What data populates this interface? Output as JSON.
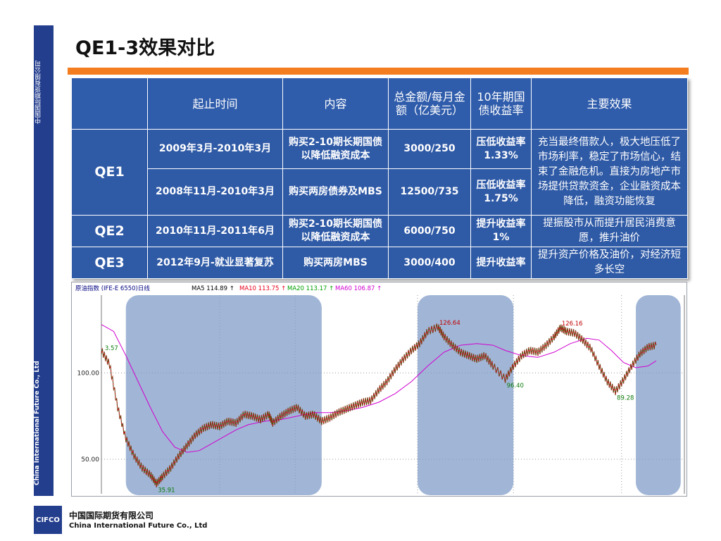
{
  "sidebar": {
    "company_cn": "中国国际期货有限公司",
    "company_en": "China International Future Co., Ltd"
  },
  "title": "QE1-3效果对比",
  "table": {
    "headers": [
      "",
      "起止时间",
      "内容",
      "总金额/每月金额（亿美元）",
      "10年期国债收益率",
      "主要效果"
    ],
    "qe1": {
      "name": "QE1",
      "rows": [
        {
          "period": "2009年3月-2010年3月",
          "content": "购买2-10期长期国债以降低融资成本",
          "amount": "3000/250",
          "yield": "压低收益率1.33%"
        },
        {
          "period": "2008年11月-2010年3月",
          "content": "购买两房债券及MBS",
          "amount": "12500/735",
          "yield": "压低收益率1.75%"
        }
      ],
      "effect": "充当最终借款人，极大地压低了市场利率，稳定了市场信心，结束了金融危机。直接为房地产市场提供贷款资金，企业融资成本降低，融资功能恢复"
    },
    "qe2": {
      "name": "QE2",
      "period": "2010年11月-2011年6月",
      "content": "购买2-10期长期国债以降低融资成本",
      "amount": "6000/750",
      "yield": "提升收益率1%",
      "effect": "提振股市从而提升居民消费意愿，推升油价"
    },
    "qe3": {
      "name": "QE3",
      "period": "2012年9月-就业显著复苏",
      "content": "购买两房MBS",
      "amount": "3000/400",
      "yield": "提升收益率",
      "effect": "提升资产价格及油价，对经济短多长空"
    }
  },
  "chart_data": {
    "type": "line",
    "title": "原油指数 (IFE-E 6550)日线",
    "legend": [
      {
        "name": "MA5",
        "value": "114.89",
        "color": "#000000"
      },
      {
        "name": "MA10",
        "value": "113.75",
        "color": "#e8001c"
      },
      {
        "name": "MA20",
        "value": "113.17",
        "color": "#00a000"
      },
      {
        "name": "MA60",
        "value": "106.87",
        "color": "#d000d0"
      }
    ],
    "y_ticks": [
      50,
      100
    ],
    "y_tick_labels": [
      "50.00",
      "100.00"
    ],
    "ylim": [
      30,
      145
    ],
    "annotations": [
      {
        "label": "3.57",
        "x": 1,
        "y": 112
      },
      {
        "label": "126.64",
        "x": 165,
        "y": 126.64
      },
      {
        "label": "126.16",
        "x": 225,
        "y": 126.16
      },
      {
        "label": "96.40",
        "x": 198,
        "y": 96.4
      },
      {
        "label": "89.28",
        "x": 252,
        "y": 89.28
      },
      {
        "label": "35.91",
        "x": 27,
        "y": 35.91
      }
    ],
    "xlim": [
      0,
      272
    ],
    "series_close": [
      [
        0,
        113
      ],
      [
        4,
        105
      ],
      [
        8,
        80
      ],
      [
        12,
        62
      ],
      [
        16,
        52
      ],
      [
        20,
        45
      ],
      [
        24,
        41
      ],
      [
        27,
        35.91
      ],
      [
        30,
        40
      ],
      [
        34,
        45
      ],
      [
        38,
        52
      ],
      [
        42,
        58
      ],
      [
        46,
        64
      ],
      [
        50,
        68
      ],
      [
        54,
        70
      ],
      [
        58,
        69
      ],
      [
        62,
        72
      ],
      [
        66,
        71
      ],
      [
        70,
        76
      ],
      [
        74,
        75
      ],
      [
        78,
        73
      ],
      [
        82,
        76
      ],
      [
        84,
        71
      ],
      [
        88,
        75
      ],
      [
        92,
        78
      ],
      [
        96,
        80
      ],
      [
        100,
        75
      ],
      [
        104,
        76
      ],
      [
        108,
        72
      ],
      [
        112,
        74
      ],
      [
        116,
        77
      ],
      [
        120,
        79
      ],
      [
        124,
        81
      ],
      [
        128,
        83
      ],
      [
        132,
        84
      ],
      [
        136,
        90
      ],
      [
        140,
        95
      ],
      [
        144,
        102
      ],
      [
        148,
        108
      ],
      [
        152,
        113
      ],
      [
        156,
        117
      ],
      [
        160,
        124
      ],
      [
        165,
        126.64
      ],
      [
        168,
        121
      ],
      [
        172,
        116
      ],
      [
        176,
        112
      ],
      [
        180,
        110
      ],
      [
        184,
        108
      ],
      [
        188,
        110
      ],
      [
        192,
        104
      ],
      [
        198,
        96.4
      ],
      [
        202,
        104
      ],
      [
        206,
        110
      ],
      [
        210,
        113
      ],
      [
        214,
        112
      ],
      [
        218,
        116
      ],
      [
        222,
        121
      ],
      [
        225,
        126.16
      ],
      [
        228,
        124
      ],
      [
        232,
        123
      ],
      [
        236,
        119
      ],
      [
        240,
        114
      ],
      [
        244,
        104
      ],
      [
        248,
        95
      ],
      [
        252,
        89.28
      ],
      [
        256,
        96
      ],
      [
        260,
        104
      ],
      [
        264,
        111
      ],
      [
        268,
        115
      ],
      [
        272,
        116
      ]
    ],
    "series_ma60": [
      [
        0,
        128
      ],
      [
        6,
        124
      ],
      [
        12,
        110
      ],
      [
        18,
        95
      ],
      [
        24,
        80
      ],
      [
        30,
        66
      ],
      [
        36,
        57
      ],
      [
        42,
        54
      ],
      [
        48,
        55
      ],
      [
        54,
        59
      ],
      [
        60,
        63
      ],
      [
        66,
        67
      ],
      [
        72,
        70
      ],
      [
        80,
        72
      ],
      [
        88,
        73
      ],
      [
        96,
        75
      ],
      [
        104,
        77
      ],
      [
        112,
        77
      ],
      [
        120,
        78
      ],
      [
        128,
        80
      ],
      [
        136,
        83
      ],
      [
        144,
        88
      ],
      [
        152,
        95
      ],
      [
        160,
        104
      ],
      [
        168,
        112
      ],
      [
        176,
        116
      ],
      [
        184,
        117
      ],
      [
        192,
        116
      ],
      [
        198,
        113
      ],
      [
        206,
        110
      ],
      [
        214,
        109
      ],
      [
        222,
        112
      ],
      [
        230,
        117
      ],
      [
        238,
        120
      ],
      [
        244,
        119
      ],
      [
        250,
        113
      ],
      [
        256,
        106
      ],
      [
        262,
        103
      ],
      [
        268,
        104
      ],
      [
        272,
        107
      ]
    ],
    "highlights": [
      {
        "from": 12,
        "to": 108
      },
      {
        "from": 155,
        "to": 202
      },
      {
        "from": 262,
        "to": 284
      }
    ],
    "vgrid": [
      58,
      95,
      155,
      202,
      255
    ]
  },
  "footer": {
    "logo": "CIFCO",
    "company_cn": "中国国际期货有限公司",
    "company_en": "China International Future Co., Ltd"
  }
}
